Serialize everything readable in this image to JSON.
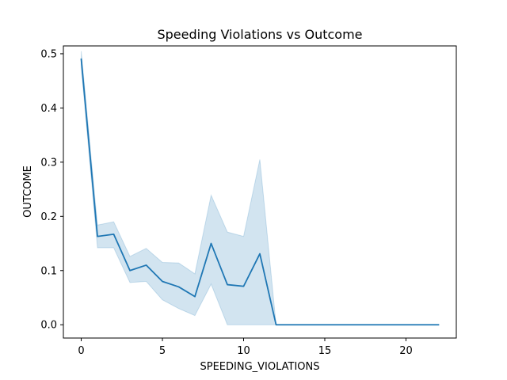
{
  "chart_data": {
    "type": "line",
    "title": "Speeding Violations vs Outcome",
    "xlabel": "SPEEDING_VIOLATIONS",
    "ylabel": "OUTCOME",
    "xlim": [
      -1.1,
      23.1
    ],
    "ylim": [
      -0.0245,
      0.5145
    ],
    "xticks": [
      0,
      5,
      10,
      15,
      20
    ],
    "yticks": [
      0.0,
      0.1,
      0.2,
      0.3,
      0.4,
      0.5
    ],
    "ytick_labels": [
      "0.0",
      "0.1",
      "0.2",
      "0.3",
      "0.4",
      "0.5"
    ],
    "grid": false,
    "legend": "none",
    "colors": {
      "line": "#1f77b4",
      "band": "#1f77b4",
      "axes": "#000000",
      "background": "#ffffff"
    },
    "series": [
      {
        "x": [
          0,
          1,
          2,
          3,
          4,
          5,
          6,
          7,
          8,
          9,
          10,
          11,
          12,
          13,
          14,
          15,
          16,
          17,
          18,
          19,
          20,
          22
        ],
        "y": [
          0.49,
          0.163,
          0.167,
          0.1,
          0.11,
          0.08,
          0.07,
          0.052,
          0.15,
          0.074,
          0.071,
          0.131,
          0.0,
          0.0,
          0.0,
          0.0,
          0.0,
          0.0,
          0.0,
          0.0,
          0.0,
          0.0
        ],
        "ci_lower": [
          0.475,
          0.142,
          0.142,
          0.078,
          0.08,
          0.046,
          0.03,
          0.017,
          0.075,
          0.0,
          0.0,
          0.0,
          0.0,
          0.0,
          0.0,
          0.0,
          0.0,
          0.0,
          0.0,
          0.0,
          0.0,
          0.0
        ],
        "ci_upper": [
          0.505,
          0.184,
          0.19,
          0.126,
          0.141,
          0.115,
          0.114,
          0.094,
          0.239,
          0.171,
          0.163,
          0.305,
          0.0,
          0.0,
          0.0,
          0.0,
          0.0,
          0.0,
          0.0,
          0.0,
          0.0,
          0.0
        ]
      }
    ]
  }
}
